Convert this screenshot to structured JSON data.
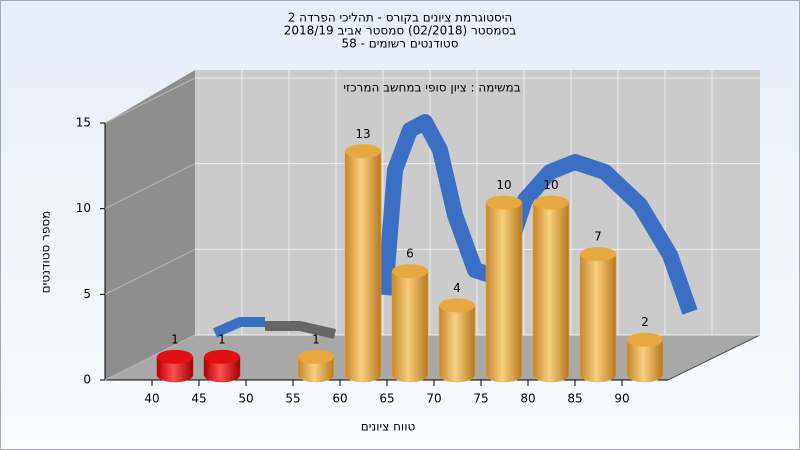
{
  "chart_data": {
    "type": "bar",
    "title": [
      "היסטוגרמת ציונים בקורס - תהליכי הפרדה 2",
      "בסמסטר  (02/2018)  סמסטר אביב 2018/19",
      "סטודנטים רשומים - 58"
    ],
    "subtitle": "במשימה : ציון סופי במחשב המרכזי",
    "x_label": "טווח ציונים",
    "y_label": "מספר סטודנטים",
    "categories": [
      "40",
      "45",
      "50",
      "55",
      "60",
      "65",
      "70",
      "75",
      "80",
      "85",
      "90"
    ],
    "values": [
      1,
      1,
      0,
      1,
      13,
      6,
      4,
      10,
      10,
      7,
      2
    ],
    "colors": [
      "#e01010",
      "#e01010",
      "#e8a840",
      "#e8a840",
      "#e8a840",
      "#e8a840",
      "#e8a840",
      "#e8a840",
      "#e8a840",
      "#e8a840",
      "#e8a840"
    ],
    "ylim": [
      0,
      15
    ],
    "yticks": [
      0,
      5,
      10,
      15
    ],
    "grid": true
  }
}
